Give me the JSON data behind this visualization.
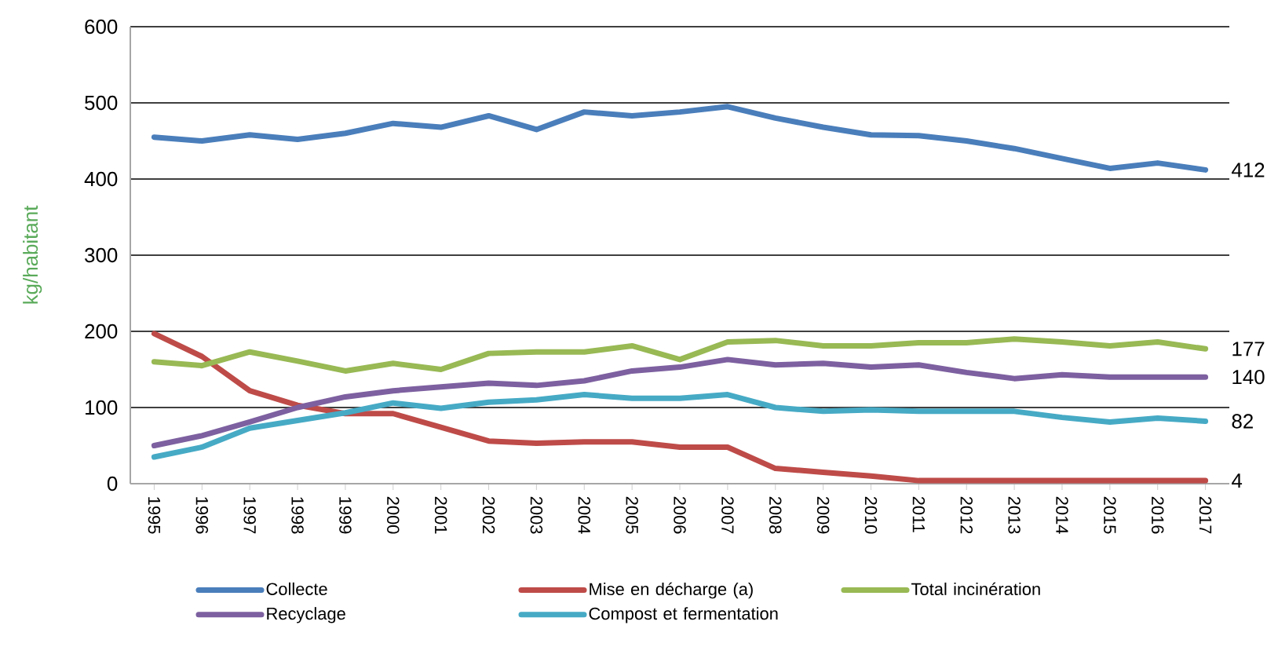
{
  "chart_data": {
    "type": "line",
    "ylabel": "kg/habitant",
    "categories": [
      "1995",
      "1996",
      "1997",
      "1998",
      "1999",
      "2000",
      "2001",
      "2002",
      "2003",
      "2004",
      "2005",
      "2006",
      "2007",
      "2008",
      "2009",
      "2010",
      "2011",
      "2012",
      "2013",
      "2014",
      "2015",
      "2016",
      "2017"
    ],
    "series": [
      {
        "name": "Collecte",
        "color": "#4a7ebb",
        "values": [
          455,
          450,
          458,
          452,
          460,
          473,
          468,
          483,
          465,
          488,
          483,
          488,
          495,
          480,
          468,
          458,
          457,
          450,
          440,
          427,
          414,
          421,
          412
        ]
      },
      {
        "name": "Mise en décharge (a)",
        "color": "#be4b48",
        "values": [
          197,
          167,
          122,
          103,
          92,
          92,
          74,
          56,
          53,
          55,
          55,
          48,
          48,
          20,
          15,
          10,
          4,
          4,
          4,
          4,
          4,
          4,
          4
        ]
      },
      {
        "name": "Total incinération",
        "color": "#98b954",
        "values": [
          160,
          155,
          173,
          161,
          148,
          158,
          150,
          171,
          173,
          173,
          181,
          163,
          186,
          188,
          181,
          181,
          185,
          185,
          190,
          186,
          181,
          186,
          177
        ]
      },
      {
        "name": "Recyclage",
        "color": "#7d60a0",
        "values": [
          50,
          63,
          81,
          100,
          114,
          122,
          127,
          132,
          129,
          135,
          148,
          153,
          163,
          156,
          158,
          153,
          156,
          146,
          138,
          143,
          140,
          140,
          140
        ]
      },
      {
        "name": "Compost et fermentation",
        "color": "#46aac5",
        "values": [
          35,
          48,
          73,
          83,
          93,
          106,
          99,
          107,
          110,
          117,
          112,
          112,
          117,
          100,
          95,
          97,
          95,
          95,
          95,
          87,
          81,
          86,
          82
        ]
      }
    ],
    "annotations": [
      {
        "text": "412",
        "x": "2017",
        "y": 412
      },
      {
        "text": "177",
        "x": "2017",
        "y": 177
      },
      {
        "text": "140",
        "x": "2017",
        "y": 140
      },
      {
        "text": "82",
        "x": "2017",
        "y": 82
      },
      {
        "text": "4",
        "x": "2017",
        "y": 4
      }
    ],
    "ylim": [
      0,
      600
    ],
    "yticks": [
      0,
      100,
      200,
      300,
      400,
      500,
      600
    ],
    "grid": "y",
    "legend": "bottom",
    "marker": "none",
    "line_style": "solid"
  }
}
